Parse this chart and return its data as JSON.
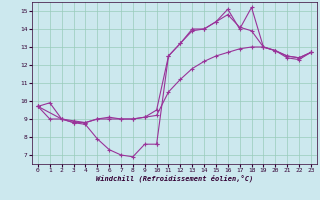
{
  "xlabel": "Windchill (Refroidissement éolien,°C)",
  "background_color": "#cce8ee",
  "line_color": "#993399",
  "marker": "+",
  "markersize": 3,
  "linewidth": 0.8,
  "xlim": [
    -0.5,
    23.5
  ],
  "ylim": [
    6.5,
    15.5
  ],
  "xticks": [
    0,
    1,
    2,
    3,
    4,
    5,
    6,
    7,
    8,
    9,
    10,
    11,
    12,
    13,
    14,
    15,
    16,
    17,
    18,
    19,
    20,
    21,
    22,
    23
  ],
  "yticks": [
    7,
    8,
    9,
    10,
    11,
    12,
    13,
    14,
    15
  ],
  "grid_color": "#99ccbb",
  "series1": [
    [
      0,
      9.7
    ],
    [
      1,
      9.9
    ],
    [
      2,
      9.0
    ],
    [
      3,
      8.8
    ],
    [
      4,
      8.7
    ],
    [
      5,
      7.9
    ],
    [
      6,
      7.3
    ],
    [
      7,
      7.0
    ],
    [
      8,
      6.9
    ],
    [
      9,
      7.6
    ],
    [
      10,
      7.6
    ]
  ],
  "series2": [
    [
      0,
      9.7
    ],
    [
      2,
      9.0
    ],
    [
      3,
      8.9
    ],
    [
      4,
      8.8
    ],
    [
      5,
      9.0
    ],
    [
      6,
      9.1
    ],
    [
      7,
      9.0
    ],
    [
      8,
      9.0
    ],
    [
      9,
      9.1
    ],
    [
      10,
      9.2
    ],
    [
      11,
      10.5
    ],
    [
      12,
      11.2
    ],
    [
      13,
      11.8
    ],
    [
      14,
      12.2
    ],
    [
      15,
      12.5
    ],
    [
      16,
      12.7
    ],
    [
      17,
      12.9
    ],
    [
      18,
      13.0
    ],
    [
      19,
      13.0
    ],
    [
      20,
      12.8
    ],
    [
      21,
      12.4
    ],
    [
      22,
      12.3
    ],
    [
      23,
      12.7
    ]
  ],
  "series3": [
    [
      0,
      9.7
    ],
    [
      1,
      9.0
    ],
    [
      2,
      9.0
    ],
    [
      3,
      8.8
    ],
    [
      4,
      8.8
    ],
    [
      5,
      9.0
    ],
    [
      6,
      9.0
    ],
    [
      7,
      9.0
    ],
    [
      8,
      9.0
    ],
    [
      9,
      9.1
    ],
    [
      10,
      9.5
    ],
    [
      11,
      12.5
    ],
    [
      12,
      13.2
    ],
    [
      13,
      13.9
    ],
    [
      14,
      14.0
    ],
    [
      15,
      14.4
    ],
    [
      16,
      14.8
    ],
    [
      17,
      14.1
    ],
    [
      18,
      13.9
    ],
    [
      19,
      13.0
    ],
    [
      20,
      12.8
    ],
    [
      21,
      12.5
    ],
    [
      22,
      12.4
    ],
    [
      23,
      12.7
    ]
  ],
  "series4": [
    [
      10,
      7.6
    ],
    [
      11,
      12.5
    ],
    [
      12,
      13.2
    ],
    [
      13,
      14.0
    ],
    [
      14,
      14.0
    ],
    [
      15,
      14.4
    ],
    [
      16,
      15.1
    ],
    [
      17,
      14.0
    ],
    [
      18,
      15.2
    ],
    [
      19,
      13.0
    ],
    [
      20,
      12.8
    ],
    [
      21,
      12.5
    ],
    [
      22,
      12.4
    ],
    [
      23,
      12.7
    ]
  ]
}
